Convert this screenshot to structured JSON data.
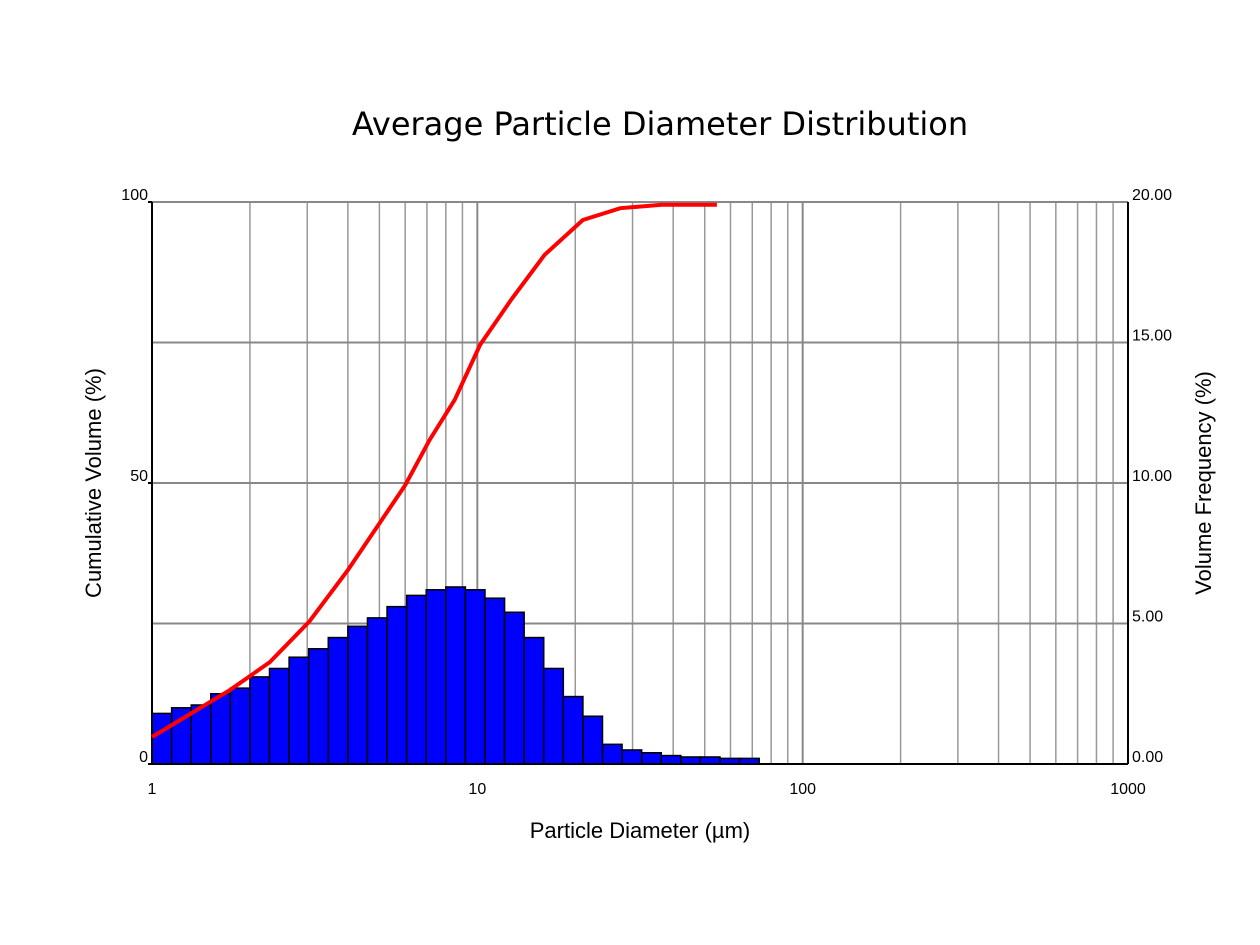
{
  "chart_data": {
    "type": "histogram",
    "title": "Average Particle Diameter Distribution",
    "x_label": "Particle Diameter (µm)",
    "y_label": "Cumulative Volume (%)",
    "y2_label": "Volume Frequency (%)",
    "x_log": true,
    "xlim": [
      1,
      1000
    ],
    "xticks": [
      1,
      10,
      100,
      1000
    ],
    "minor_grid": true,
    "ylim": [
      0,
      100
    ],
    "yticks": [
      0,
      50,
      100
    ],
    "y2lim": [
      0,
      20
    ],
    "y2ticks": [
      {
        "value": 0,
        "label": "0.00"
      },
      {
        "value": 5,
        "label": "5.00"
      },
      {
        "value": 10,
        "label": "10.00"
      },
      {
        "value": 15,
        "label": "15.00"
      },
      {
        "value": 20,
        "label": "20.00"
      }
    ],
    "grid": true,
    "bins": [
      1.0,
      1.149,
      1.32,
      1.516,
      1.741,
      2.0,
      2.297,
      2.639,
      3.031,
      3.482,
      4.0,
      4.595,
      5.278,
      6.063,
      6.964,
      8.0,
      9.19,
      10.556,
      12.126,
      13.929,
      16.0,
      18.379,
      21.112,
      24.251,
      27.858,
      32.0,
      36.758,
      42.224,
      48.503,
      55.715,
      64.0,
      73.517
    ],
    "values": [
      1.8,
      2.0,
      2.1,
      2.5,
      2.7,
      3.1,
      3.4,
      3.8,
      4.1,
      4.5,
      4.9,
      5.2,
      5.6,
      6.0,
      6.2,
      6.3,
      6.2,
      5.9,
      5.4,
      4.5,
      3.4,
      2.4,
      1.7,
      0.7,
      0.5,
      0.4,
      0.3,
      0.25,
      0.25,
      0.2,
      0.2
    ],
    "axis": "y2",
    "color": "#0000ff",
    "line": {
      "x": [
        1.0,
        1.31,
        1.74,
        2.3,
        3.04,
        4.0,
        6.0,
        7.14,
        8.52,
        10.2,
        12.7,
        16.1,
        21.1,
        27.5,
        36.9,
        54.5
      ],
      "values": [
        4.8,
        8.9,
        13.2,
        18.1,
        25.3,
        34.5,
        49.6,
        57.7,
        64.8,
        74.6,
        82.6,
        90.6,
        96.8,
        98.9,
        99.5,
        99.5
      ],
      "color": "#ff0000"
    }
  }
}
